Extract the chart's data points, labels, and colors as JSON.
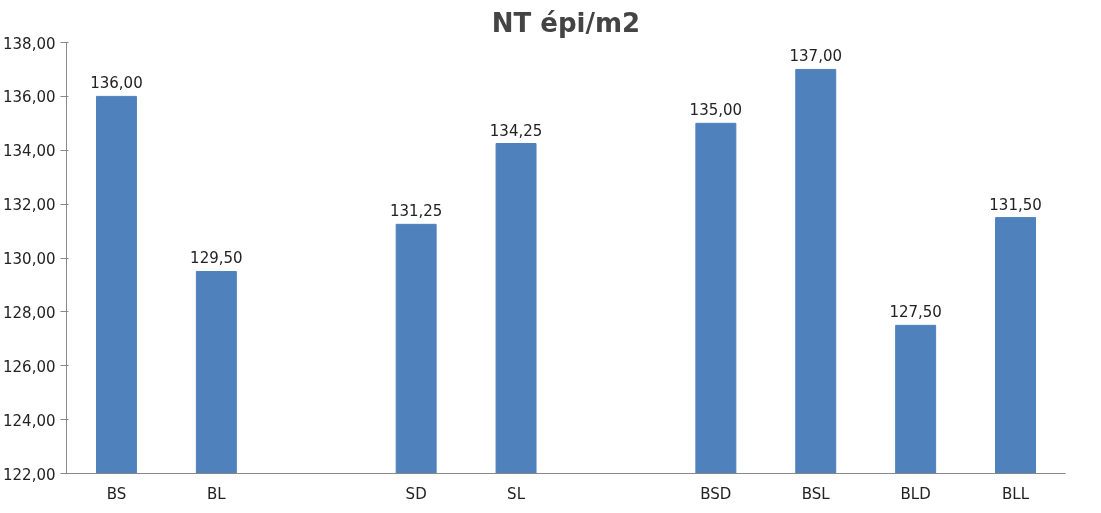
{
  "chart_data": {
    "type": "bar",
    "title": "NT épi/m2",
    "categories": [
      "BS",
      "BL",
      null,
      "SD",
      "SL",
      null,
      "BSD",
      "BSL",
      "BLD",
      "BLL"
    ],
    "values": [
      136.0,
      129.5,
      null,
      131.25,
      134.25,
      null,
      135.0,
      137.0,
      127.5,
      131.5
    ],
    "value_labels": [
      "136,00",
      "129,50",
      null,
      "131,25",
      "134,25",
      null,
      "135,00",
      "137,00",
      "127,50",
      "131,50"
    ],
    "color": "#4f81bd",
    "ylim": [
      122,
      138
    ],
    "yticks": [
      {
        "value": 122,
        "label": "122,00"
      },
      {
        "value": 124,
        "label": "124,00"
      },
      {
        "value": 126,
        "label": "126,00"
      },
      {
        "value": 128,
        "label": "128,00"
      },
      {
        "value": 130,
        "label": "130,00"
      },
      {
        "value": 132,
        "label": "132,00"
      },
      {
        "value": 134,
        "label": "134,00"
      },
      {
        "value": 136,
        "label": "136,00"
      },
      {
        "value": 138,
        "label": "138,00"
      }
    ],
    "grid": false
  }
}
